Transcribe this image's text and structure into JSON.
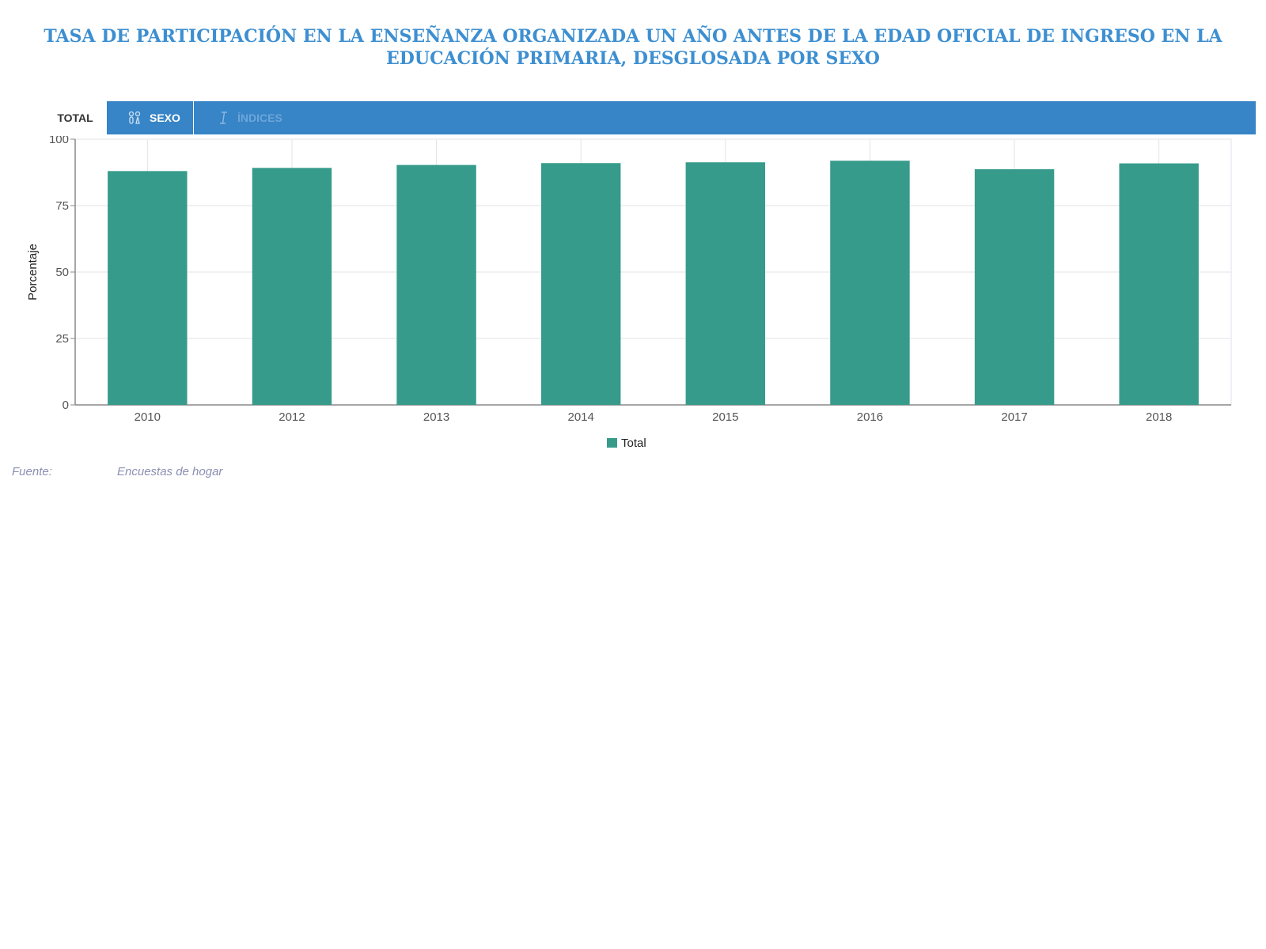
{
  "title": "TASA DE PARTICIPACIÓN EN LA ENSEÑANZA ORGANIZADA UN AÑO ANTES DE LA EDAD OFICIAL DE INGRESO EN LA EDUCACIÓN PRIMARIA, DESGLOSADA POR SEXO",
  "tabs": {
    "total": "TOTAL",
    "sexo": "SEXO",
    "indices": "ÍNDICES",
    "sexo_icon": "gender-icon",
    "indices_icon": "index-icon"
  },
  "chart_data": {
    "type": "bar",
    "categories": [
      "2010",
      "2012",
      "2013",
      "2014",
      "2015",
      "2016",
      "2017",
      "2018"
    ],
    "series": [
      {
        "name": "Total",
        "values": [
          88.0,
          89.2,
          90.3,
          91.0,
          91.3,
          91.9,
          88.7,
          90.9
        ],
        "color": "#379b8b"
      }
    ],
    "ylabel": "Porcentaje",
    "ylim": [
      0,
      100
    ],
    "yticks": [
      0,
      25,
      50,
      75,
      100
    ],
    "grid": true,
    "legend_position": "bottom-center"
  },
  "source": {
    "label": "Fuente:",
    "value": "Encuestas de hogar"
  },
  "colors": {
    "title": "#3d8fd1",
    "tabbar": "#3784c6",
    "bar": "#379b8b",
    "source_text": "#8a8fb3"
  }
}
